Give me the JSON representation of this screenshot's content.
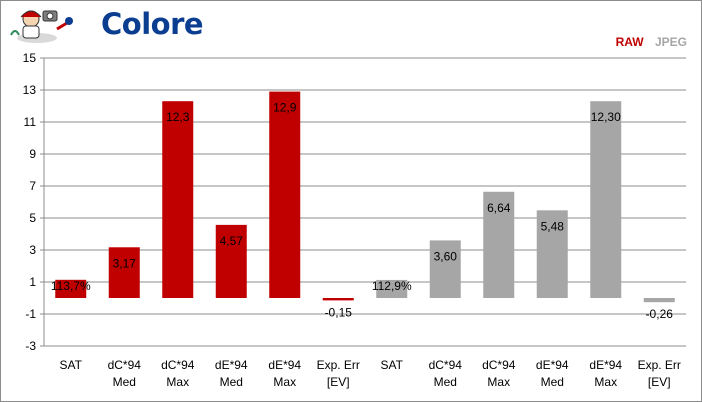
{
  "title": "Colore",
  "legend": [
    {
      "label": "RAW",
      "color": "#c00000"
    },
    {
      "label": "JPEG",
      "color": "#a6a6a6"
    }
  ],
  "chart_data": {
    "type": "bar",
    "categories": [
      [
        "SAT",
        ""
      ],
      [
        "dC*94",
        "Med"
      ],
      [
        "dC*94",
        "Max"
      ],
      [
        "dE*94",
        "Med"
      ],
      [
        "dE*94",
        "Max"
      ],
      [
        "Exp. Err",
        "[EV]"
      ],
      [
        "SAT",
        ""
      ],
      [
        "dC*94",
        "Med"
      ],
      [
        "dC*94",
        "Max"
      ],
      [
        "dE*94",
        "Med"
      ],
      [
        "dE*94",
        "Max"
      ],
      [
        "Exp. Err",
        "[EV]"
      ]
    ],
    "values": [
      1.137,
      3.17,
      12.3,
      4.57,
      12.9,
      -0.15,
      1.129,
      3.6,
      6.64,
      5.48,
      12.3,
      -0.26
    ],
    "value_labels": [
      "113,7%",
      "3,17",
      "12,3",
      "4,57",
      "12,9",
      "-0,15",
      "112,9%",
      "3,60",
      "6,64",
      "5,48",
      "12,30",
      "-0,26"
    ],
    "colors": [
      "#c00000",
      "#c00000",
      "#c00000",
      "#c00000",
      "#c00000",
      "#c00000",
      "#a6a6a6",
      "#a6a6a6",
      "#a6a6a6",
      "#a6a6a6",
      "#a6a6a6",
      "#a6a6a6"
    ],
    "yticks": [
      "15",
      "13",
      "11",
      "9",
      "7",
      "5",
      "3",
      "1",
      "-1",
      "-3"
    ],
    "ylim": [
      -3,
      15
    ],
    "grid": true,
    "legend_position": "top-right"
  }
}
